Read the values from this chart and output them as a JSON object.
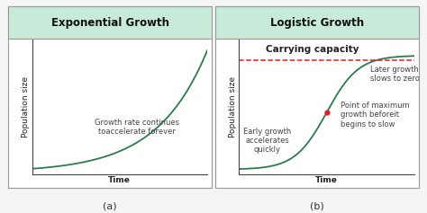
{
  "title_left": "Exponential Growth",
  "title_right": "Logistic Growth",
  "label_a": "(a)",
  "label_b": "(b)",
  "xlabel": "Time",
  "ylabel": "Population size",
  "carrying_capacity_label": "Carrying capacity",
  "annotation_exp": "Growth rate continues\ntoaccelerate forever",
  "annotation_early": "Early growth\naccelerates\nquickly",
  "annotation_later": "Later growth\nslows to zero",
  "annotation_point": "Point of maximum\ngrowth beforeit\nbegins to slow",
  "header_bg": "#c8ead8",
  "curve_color": "#2d7a4f",
  "carrying_capacity_color": "#d9222a",
  "point_color": "#d9222a",
  "bg_color": "#f5f5f5",
  "panel_bg": "#ffffff",
  "border_color": "#999999",
  "title_fontsize": 8.5,
  "axis_label_fontsize": 6.5,
  "annotation_fontsize": 6.0,
  "carrying_label_fontsize": 7.5,
  "sublabel_fontsize": 8
}
